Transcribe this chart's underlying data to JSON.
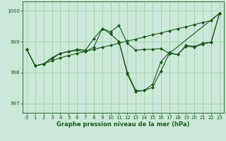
{
  "title": "Graphe pression niveau de la mer (hPa)",
  "xlim": [
    -0.5,
    23.5
  ],
  "ylim": [
    996.7,
    1000.3
  ],
  "yticks": [
    997,
    998,
    999,
    1000
  ],
  "xticks": [
    0,
    1,
    2,
    3,
    4,
    5,
    6,
    7,
    8,
    9,
    10,
    11,
    12,
    13,
    14,
    15,
    16,
    17,
    18,
    19,
    20,
    21,
    22,
    23
  ],
  "bg_color": "#cce8d8",
  "grid_color": "#99ccaa",
  "line_color": "#1a5c1a",
  "series": [
    {
      "x": [
        0,
        1,
        2,
        3,
        4,
        5,
        6,
        7,
        8,
        9,
        10,
        11,
        12,
        13,
        14,
        15,
        16,
        17,
        18,
        19,
        20,
        21,
        22,
        23
      ],
      "y": [
        998.75,
        998.22,
        998.28,
        998.38,
        998.48,
        998.55,
        998.62,
        998.68,
        998.75,
        998.82,
        998.88,
        998.95,
        999.02,
        999.08,
        999.15,
        999.22,
        999.28,
        999.35,
        999.42,
        999.48,
        999.55,
        999.62,
        999.68,
        999.92
      ]
    },
    {
      "x": [
        0,
        1,
        2,
        3,
        4,
        5,
        6,
        7,
        8,
        9,
        10,
        11,
        12,
        13,
        14,
        15,
        16,
        17,
        18,
        19,
        20,
        21,
        22,
        23
      ],
      "y": [
        998.75,
        998.22,
        998.28,
        998.48,
        998.62,
        998.68,
        998.75,
        998.72,
        999.1,
        999.42,
        999.25,
        999.0,
        998.0,
        997.42,
        997.42,
        997.52,
        998.05,
        998.62,
        998.58,
        998.85,
        998.82,
        998.92,
        998.98,
        999.92
      ]
    },
    {
      "x": [
        0,
        1,
        2,
        3,
        4,
        5,
        6,
        7,
        8,
        9,
        10,
        11,
        12,
        13,
        14,
        15,
        16,
        17,
        23
      ],
      "y": [
        998.75,
        998.22,
        998.28,
        998.45,
        998.62,
        998.68,
        998.72,
        998.68,
        998.82,
        999.42,
        999.32,
        999.52,
        998.95,
        998.72,
        998.75,
        998.75,
        998.78,
        998.62,
        999.92
      ]
    },
    {
      "x": [
        11,
        12,
        13,
        14,
        15,
        16,
        17,
        18,
        19,
        20,
        21,
        22,
        23
      ],
      "y": [
        999.0,
        997.95,
        997.38,
        997.42,
        997.62,
        998.35,
        998.65,
        998.58,
        998.88,
        998.85,
        998.95,
        998.98,
        999.92
      ]
    }
  ],
  "marker": "D",
  "markersize": 2.0,
  "linewidth": 0.8,
  "tick_fontsize": 5.0,
  "label_fontsize": 6.0
}
